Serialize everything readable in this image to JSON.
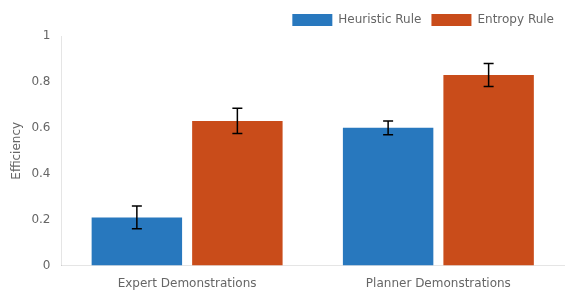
{
  "chart_data": {
    "type": "bar",
    "categories": [
      "Expert Demonstrations",
      "Planner Demonstrations"
    ],
    "series": [
      {
        "name": "Heuristic Rule",
        "color": "#2878BE",
        "values": [
          0.21,
          0.6
        ],
        "errors": [
          0.05,
          0.03
        ]
      },
      {
        "name": "Entropy Rule",
        "color": "#C94C1A",
        "values": [
          0.63,
          0.83
        ],
        "errors": [
          0.055,
          0.05
        ]
      }
    ],
    "ylabel": "Efficiency",
    "ylim": [
      0,
      1.0
    ],
    "yticks": [
      0,
      0.2,
      0.4,
      0.6,
      0.8,
      1
    ],
    "grid": false,
    "legend": "upper right"
  }
}
